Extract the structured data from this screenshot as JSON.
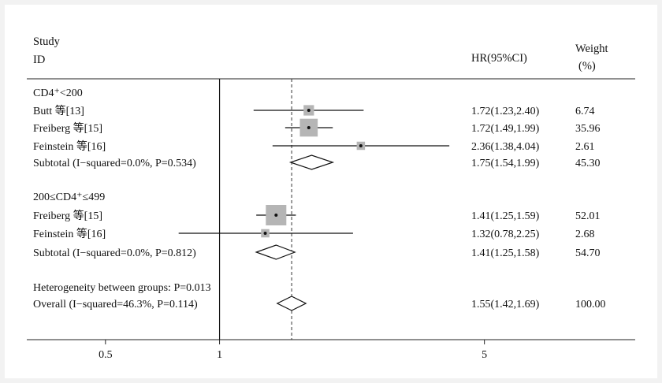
{
  "header": {
    "study": "Study",
    "id": "ID",
    "hr": "HR(95%CI)",
    "weight": "Weight",
    "weight_unit": "(%)"
  },
  "chart_data": {
    "type": "forest",
    "x_scale": "log",
    "xlim": [
      0.31,
      12.5
    ],
    "x_ticks": [
      0.5,
      1,
      5
    ],
    "x_tick_labels": [
      "0.5",
      "1",
      "5"
    ],
    "reference_line": 1,
    "overall_line": 1.55,
    "rows": [
      {
        "kind": "group",
        "label": "CD4⁺<200"
      },
      {
        "kind": "study",
        "label": "Butt 等[13]",
        "hr": 1.72,
        "lo": 1.23,
        "hi": 2.4,
        "ci": "1.72(1.23,2.40)",
        "weight": "6.74",
        "w": 6.74
      },
      {
        "kind": "study",
        "label": "Freiberg 等[15]",
        "hr": 1.72,
        "lo": 1.49,
        "hi": 1.99,
        "ci": "1.72(1.49,1.99)",
        "weight": "35.96",
        "w": 35.96
      },
      {
        "kind": "study",
        "label": "Feinstein 等[16]",
        "hr": 2.36,
        "lo": 1.38,
        "hi": 4.04,
        "ci": "2.36(1.38,4.04)",
        "weight": "2.61",
        "w": 2.61
      },
      {
        "kind": "subtotal",
        "label": "Subtotal (I−squared=0.0%, P=0.534)",
        "hr": 1.75,
        "lo": 1.54,
        "hi": 1.99,
        "ci": "1.75(1.54,1.99)",
        "weight": "45.30"
      },
      {
        "kind": "group",
        "label": "200≤CD4⁺≤499"
      },
      {
        "kind": "study",
        "label": "Freiberg 等[15]",
        "hr": 1.41,
        "lo": 1.25,
        "hi": 1.59,
        "ci": "1.41(1.25,1.59)",
        "weight": "52.01",
        "w": 52.01
      },
      {
        "kind": "study",
        "label": "Feinstein 等[16]",
        "hr": 1.32,
        "lo": 0.78,
        "hi": 2.25,
        "ci": "1.32(0.78,2.25)",
        "weight": "2.68",
        "w": 2.68
      },
      {
        "kind": "subtotal",
        "label": "Subtotal (I−squared=0.0%, P=0.812)",
        "hr": 1.41,
        "lo": 1.25,
        "hi": 1.58,
        "ci": "1.41(1.25,1.58)",
        "weight": "54.70"
      },
      {
        "kind": "note",
        "label": "Heterogeneity between groups: P=0.013"
      },
      {
        "kind": "overall",
        "label": "Overall (I−squared=46.3%, P=0.114)",
        "hr": 1.55,
        "lo": 1.42,
        "hi": 1.69,
        "ci": "1.55(1.42,1.69)",
        "weight": "100.00"
      }
    ]
  }
}
